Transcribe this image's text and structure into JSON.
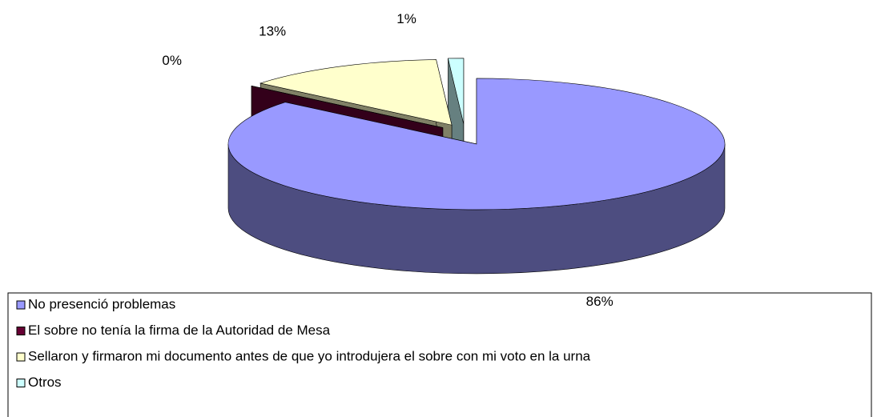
{
  "chart_data": {
    "type": "pie3d",
    "categories": [
      "No presenció problemas",
      "El sobre no tenía la firma de la Autoridad de Mesa",
      "Sellaron y firmaron mi documento antes de que yo introdujera el sobre con mi voto en la urna",
      "Otros"
    ],
    "values": [
      86,
      0,
      13,
      1
    ],
    "value_labels": [
      "86%",
      "0%",
      "13%",
      "1%"
    ],
    "colors": [
      "#9999ff",
      "#660033",
      "#ffffcc",
      "#ccffff"
    ],
    "legend": "bottom"
  }
}
